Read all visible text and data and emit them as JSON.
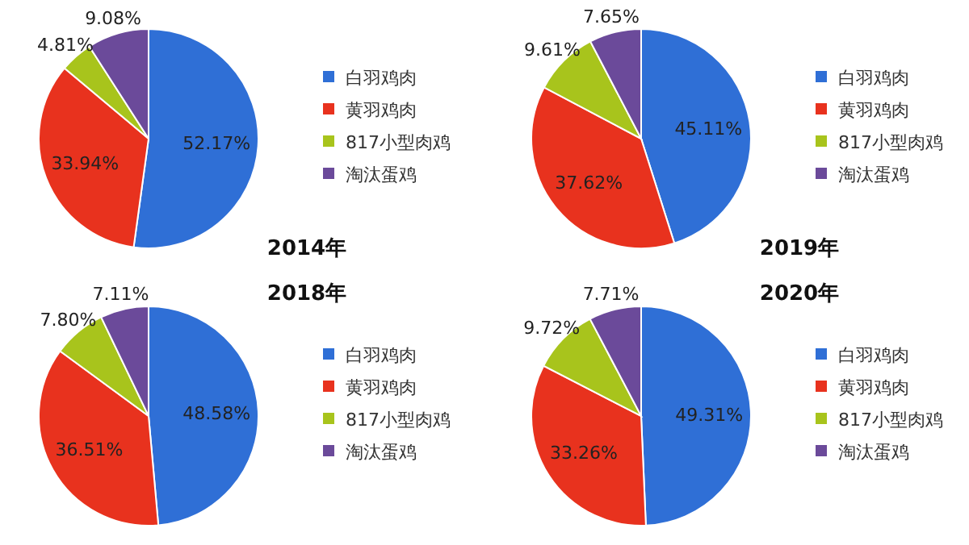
{
  "chart_data": [
    {
      "type": "pie",
      "title": "2014年",
      "categories": [
        "白羽鸡肉",
        "黄羽鸡肉",
        "817小型肉鸡",
        "淘汰蛋鸡"
      ],
      "values": [
        52.17,
        33.94,
        4.81,
        9.08
      ],
      "value_labels": [
        "52.17%",
        "33.94%",
        "4.81%",
        "9.08%"
      ],
      "colors": [
        "#2f6fd6",
        "#e8321e",
        "#a8c41c",
        "#6b4a9a"
      ],
      "legend": "right"
    },
    {
      "type": "pie",
      "title": "2019年",
      "categories": [
        "白羽鸡肉",
        "黄羽鸡肉",
        "817小型肉鸡",
        "淘汰蛋鸡"
      ],
      "values": [
        45.11,
        37.62,
        9.61,
        7.65
      ],
      "value_labels": [
        "45.11%",
        "37.62%",
        "9.61%",
        "7.65%"
      ],
      "colors": [
        "#2f6fd6",
        "#e8321e",
        "#a8c41c",
        "#6b4a9a"
      ],
      "legend": "right"
    },
    {
      "type": "pie",
      "title": "2018年",
      "categories": [
        "白羽鸡肉",
        "黄羽鸡肉",
        "817小型肉鸡",
        "淘汰蛋鸡"
      ],
      "values": [
        48.58,
        36.51,
        7.8,
        7.11
      ],
      "value_labels": [
        "48.58%",
        "36.51%",
        "7.80%",
        "7.11%"
      ],
      "colors": [
        "#2f6fd6",
        "#e8321e",
        "#a8c41c",
        "#6b4a9a"
      ],
      "legend": "right"
    },
    {
      "type": "pie",
      "title": "2020年",
      "categories": [
        "白羽鸡肉",
        "黄羽鸡肉",
        "817小型肉鸡",
        "淘汰蛋鸡"
      ],
      "values": [
        49.31,
        33.26,
        9.72,
        7.71
      ],
      "value_labels": [
        "49.31%",
        "33.26%",
        "9.72%",
        "7.71%"
      ],
      "colors": [
        "#2f6fd6",
        "#e8321e",
        "#a8c41c",
        "#6b4a9a"
      ],
      "legend": "right"
    }
  ]
}
